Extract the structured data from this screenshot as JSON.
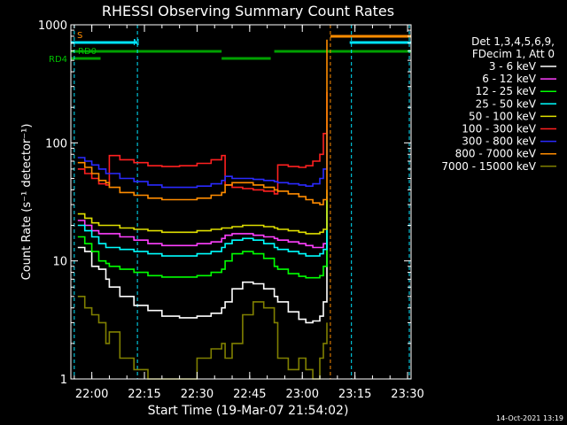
{
  "chart_data": {
    "type": "line",
    "title": "RHESSI Observing Summary Count Rates",
    "xlabel": "Start Time (19-Mar-07 21:54:02)",
    "ylabel": "Count Rate (s⁻¹ detector⁻¹)",
    "y_scale": "log",
    "ylim": [
      1,
      1000
    ],
    "xlim": [
      "21:54:02",
      "23:31:00"
    ],
    "x_ticks": [
      "22:00",
      "22:15",
      "22:30",
      "22:45",
      "23:00",
      "23:15",
      "23:30"
    ],
    "y_ticks": [
      "1",
      "10",
      "100",
      "1000"
    ],
    "grid": false,
    "legend_position": "right",
    "legend_header": [
      "Det 1,3,4,5,6,9,",
      "FDecim 1, Att 0"
    ],
    "footer_date": "14-Oct-2021 13:19",
    "flag_labels": [
      "S",
      "N",
      "RD0",
      "RD4"
    ],
    "flags": [
      {
        "label": "S",
        "color": "#ff8c00",
        "segments": [
          [
            "23:08:00",
            "23:31:00"
          ]
        ]
      },
      {
        "label": "N",
        "color": "#00e5ff",
        "segments": [
          [
            "21:54:02",
            "22:13:00"
          ],
          [
            "23:13:30",
            "23:31:00"
          ]
        ]
      },
      {
        "label": "RD0",
        "color": "#00a000",
        "segments": [
          [
            "21:54:02",
            "22:37:00"
          ],
          [
            "22:52:00",
            "23:31:00"
          ]
        ]
      },
      {
        "label": "RD4",
        "color": "#00a000",
        "segments": [
          [
            "21:54:02",
            "22:02:30"
          ],
          [
            "22:37:00",
            "22:51:00"
          ]
        ]
      }
    ],
    "vlines": [
      {
        "time": "21:55:00",
        "color": "#00e5ff"
      },
      {
        "time": "22:13:00",
        "color": "#00e5ff"
      },
      {
        "time": "23:08:00",
        "color": "#ff8c00"
      },
      {
        "time": "23:14:00",
        "color": "#00e5ff"
      },
      {
        "time": "23:30:30",
        "color": "#00e5ff"
      }
    ],
    "x": [
      "21:56",
      "21:58",
      "22:00",
      "22:02",
      "22:04",
      "22:05",
      "22:08",
      "22:12",
      "22:16",
      "22:20",
      "22:25",
      "22:30",
      "22:34",
      "22:37",
      "22:38",
      "22:40",
      "22:43",
      "22:46",
      "22:49",
      "22:52",
      "22:53",
      "22:56",
      "22:59",
      "23:01",
      "23:03",
      "23:05",
      "23:06",
      "23:07"
    ],
    "series": [
      {
        "name": "3 - 6 keV",
        "color": "#ffffff",
        "values": [
          13,
          12,
          9,
          8.5,
          7,
          6,
          5,
          4.2,
          3.8,
          3.4,
          3.3,
          3.4,
          3.6,
          4,
          4.5,
          5.8,
          6.6,
          6.4,
          5.8,
          5,
          4.5,
          3.7,
          3.2,
          3,
          3.1,
          3.4,
          4.5,
          18
        ]
      },
      {
        "name": "6 - 12 keV",
        "color": "#ff40ff",
        "values": [
          22,
          20,
          18,
          17,
          17,
          17,
          16,
          15,
          14,
          13.5,
          13.5,
          14,
          14.5,
          15.5,
          16.5,
          17,
          17,
          16.5,
          16,
          15.5,
          15,
          14.5,
          14,
          13.5,
          13,
          13,
          14,
          25
        ]
      },
      {
        "name": "12 - 25 keV",
        "color": "#00ff00",
        "values": [
          16,
          14,
          12,
          10,
          9.5,
          9,
          8.5,
          8,
          7.5,
          7.3,
          7.3,
          7.5,
          8,
          8.5,
          10,
          11.5,
          12,
          11.5,
          10.5,
          9,
          8.5,
          7.8,
          7.4,
          7.2,
          7.2,
          7.5,
          9,
          30
        ]
      },
      {
        "name": "25 - 50 keV",
        "color": "#00ffff",
        "values": [
          20,
          18,
          16,
          14,
          13,
          13,
          12.5,
          12,
          11.5,
          11,
          11,
          11.5,
          12,
          13,
          14,
          15,
          15.5,
          15,
          14,
          13,
          12.5,
          12,
          11.5,
          11,
          11,
          11.5,
          12.5,
          35
        ]
      },
      {
        "name": "50 - 100 keV",
        "color": "#e0e000",
        "values": [
          25,
          23,
          21,
          20,
          20,
          20,
          19,
          18.5,
          18,
          17.5,
          17.5,
          18,
          18.5,
          19,
          19,
          19.5,
          20,
          20,
          19.5,
          19,
          18.5,
          18,
          17.5,
          17,
          17,
          17.5,
          18.5,
          40
        ]
      },
      {
        "name": "100 - 300 keV",
        "color": "#ff2020",
        "values": [
          60,
          55,
          50,
          45,
          44,
          78,
          72,
          68,
          64,
          63,
          64,
          67,
          72,
          78,
          44,
          42,
          41,
          40,
          39,
          37,
          65,
          63,
          62,
          64,
          70,
          80,
          120,
          270
        ]
      },
      {
        "name": "300 - 800 keV",
        "color": "#2a2aff",
        "values": [
          75,
          70,
          65,
          60,
          55,
          55,
          50,
          47,
          44,
          42,
          42,
          43,
          45,
          48,
          52,
          50,
          50,
          49,
          48,
          47,
          46,
          45,
          44,
          43,
          45,
          50,
          60,
          130
        ]
      },
      {
        "name": "800 - 7000 keV",
        "color": "#ff8c00",
        "values": [
          68,
          62,
          55,
          48,
          46,
          42,
          38,
          36,
          34,
          33,
          33,
          34,
          36,
          38,
          44,
          46,
          46,
          44,
          42,
          40,
          39,
          37,
          35,
          33,
          31,
          30,
          33,
          750
        ]
      },
      {
        "name": "7000 - 15000 keV",
        "color": "#808000",
        "values": [
          5,
          4,
          3.5,
          3,
          2,
          2.5,
          1.5,
          1.2,
          1,
          1,
          1,
          1.5,
          1.8,
          2,
          1.5,
          2,
          3.5,
          4.5,
          4,
          3,
          1.5,
          1.2,
          1.5,
          1.2,
          1,
          1.5,
          2,
          3
        ]
      }
    ]
  }
}
